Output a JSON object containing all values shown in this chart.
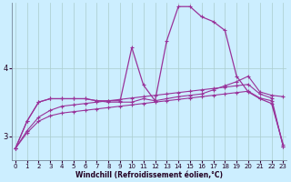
{
  "xlabel": "Windchill (Refroidissement éolien,°C)",
  "bg_color": "#cceeff",
  "line_color": "#993399",
  "grid_color": "#aacccc",
  "x_ticks": [
    0,
    1,
    2,
    3,
    4,
    5,
    6,
    7,
    8,
    9,
    10,
    11,
    12,
    13,
    14,
    15,
    16,
    17,
    18,
    19,
    20,
    21,
    22,
    23
  ],
  "y_ticks": [
    3,
    4
  ],
  "ylim": [
    2.65,
    4.95
  ],
  "xlim": [
    -0.3,
    23.3
  ],
  "series1": [
    2.82,
    3.22,
    3.5,
    3.55,
    3.55,
    3.55,
    3.55,
    3.52,
    3.52,
    3.52,
    4.3,
    3.75,
    3.52,
    4.4,
    4.9,
    4.9,
    4.75,
    4.68,
    4.55,
    3.88,
    3.65,
    3.55,
    3.48,
    2.88
  ],
  "series2": [
    2.82,
    3.22,
    3.5,
    3.55,
    3.55,
    3.55,
    3.55,
    3.52,
    3.5,
    3.5,
    3.5,
    3.55,
    3.52,
    3.55,
    3.58,
    3.6,
    3.62,
    3.68,
    3.74,
    3.8,
    3.88,
    3.65,
    3.6,
    3.58
  ],
  "series3": [
    2.82,
    3.05,
    3.22,
    3.3,
    3.34,
    3.36,
    3.38,
    3.4,
    3.42,
    3.44,
    3.46,
    3.48,
    3.5,
    3.52,
    3.54,
    3.56,
    3.58,
    3.6,
    3.62,
    3.64,
    3.66,
    3.56,
    3.52,
    2.85
  ],
  "series4": [
    2.82,
    3.08,
    3.28,
    3.38,
    3.44,
    3.46,
    3.48,
    3.5,
    3.52,
    3.54,
    3.56,
    3.58,
    3.6,
    3.62,
    3.64,
    3.66,
    3.68,
    3.7,
    3.72,
    3.74,
    3.76,
    3.62,
    3.56,
    2.85
  ]
}
